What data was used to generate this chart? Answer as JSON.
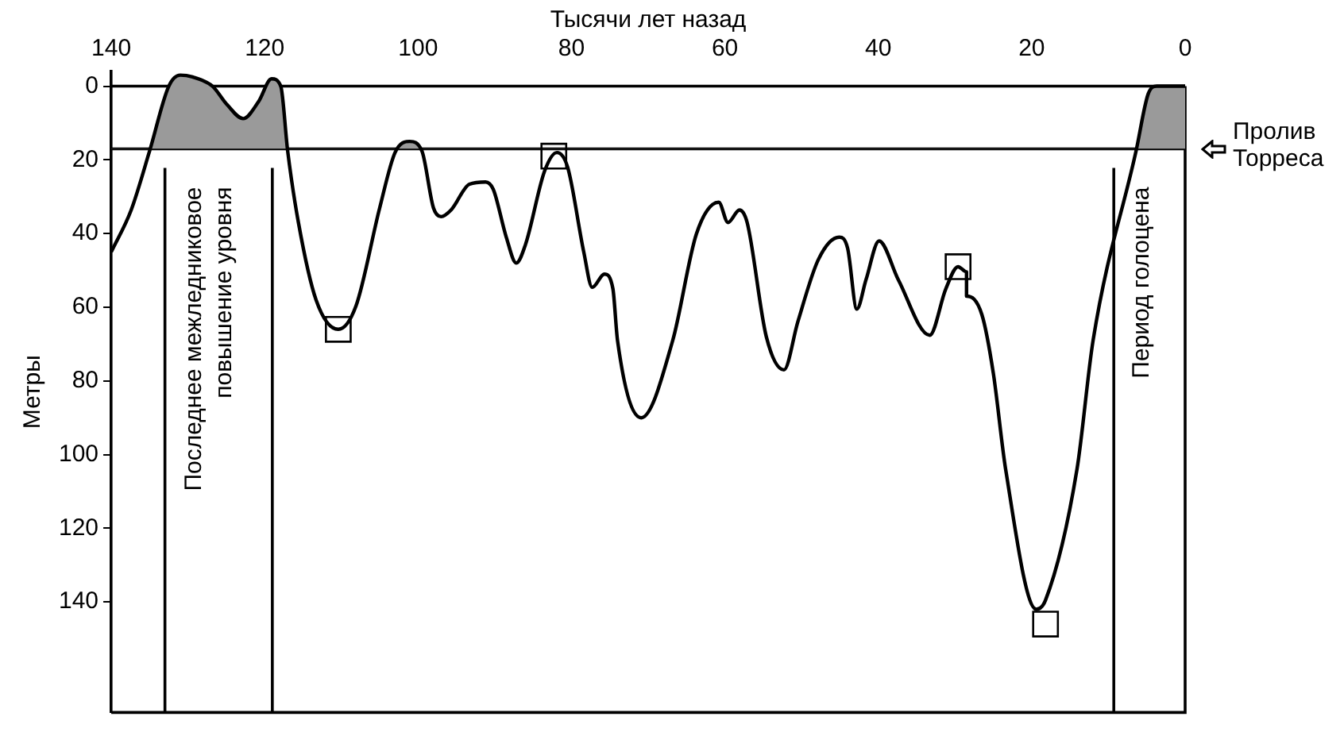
{
  "chart_data": {
    "type": "line",
    "xlabel": "Тысячи лет назад",
    "ylabel": "Метры",
    "xlim": [
      140,
      0
    ],
    "xticks": [
      140,
      120,
      100,
      80,
      60,
      40,
      20,
      0
    ],
    "ylim": [
      170,
      -4
    ],
    "yticks": [
      0,
      20,
      40,
      60,
      80,
      100,
      120,
      140
    ],
    "grid": false,
    "legend": false,
    "series": [
      {
        "color": "#000000",
        "x": [
          140,
          137.4,
          135,
          132.5,
          131,
          129.4,
          126.8,
          124.9,
          122.8,
          120.8,
          119.1,
          117.9,
          117,
          115.6,
          113.3,
          110.4,
          108.1,
          105,
          103,
          101.1,
          99.5,
          98,
          97,
          95.7,
          93.3,
          91.2,
          90.2,
          88.5,
          87.2,
          86,
          83.5,
          81.9,
          80.5,
          78.4,
          77.3,
          75.7,
          74.6,
          74,
          70.9,
          66.8,
          63.7,
          60.8,
          59.6,
          58.1,
          57.1,
          54.6,
          52.3,
          50.5,
          47.8,
          45.1,
          44,
          42.8,
          41.6,
          39.9,
          37.4,
          33.3,
          31.2,
          29.6,
          28.5,
          28.5,
          26.5,
          25,
          23.4,
          19.4,
          18.2,
          14.1,
          12,
          6.4,
          4.8,
          3.7,
          0
        ],
        "values": [
          45,
          33.6,
          17.6,
          0,
          -3,
          -2.5,
          0,
          5,
          8.8,
          4.2,
          -2,
          0,
          17.6,
          37,
          58,
          66,
          59.7,
          33,
          18,
          15,
          17.6,
          33,
          35.4,
          33.6,
          26.6,
          26,
          28,
          41,
          48,
          43,
          23,
          18,
          22,
          45,
          54.6,
          51,
          55,
          69,
          90,
          69,
          40,
          31.5,
          37,
          33.6,
          37,
          68,
          77,
          64,
          47,
          41,
          44,
          60.5,
          52.5,
          42,
          52.5,
          67.6,
          55,
          49,
          50.4,
          57,
          62,
          78,
          104,
          142,
          139.5,
          104,
          69,
          17.6,
          2,
          0,
          0
        ]
      },
      {
        "type": "scatter",
        "marker": "square",
        "color": "#000000",
        "x": [
          110.4,
          82.3,
          29.6,
          18.2
        ],
        "values": [
          66,
          19,
          49,
          146
        ]
      }
    ],
    "ref_lines": [
      {
        "axis": "y",
        "value": 0,
        "color": "#000000"
      },
      {
        "axis": "y",
        "value": 17,
        "label": "Пролив Торреса",
        "color": "#000000"
      },
      {
        "axis": "x",
        "value": 133,
        "label": "Последнее межледниковое\nповышение уровня",
        "color": "#000000"
      },
      {
        "axis": "x",
        "value": 119,
        "color": "#000000"
      },
      {
        "axis": "x",
        "value": 9.3,
        "label": "Период голоцена",
        "color": "#000000"
      }
    ]
  }
}
